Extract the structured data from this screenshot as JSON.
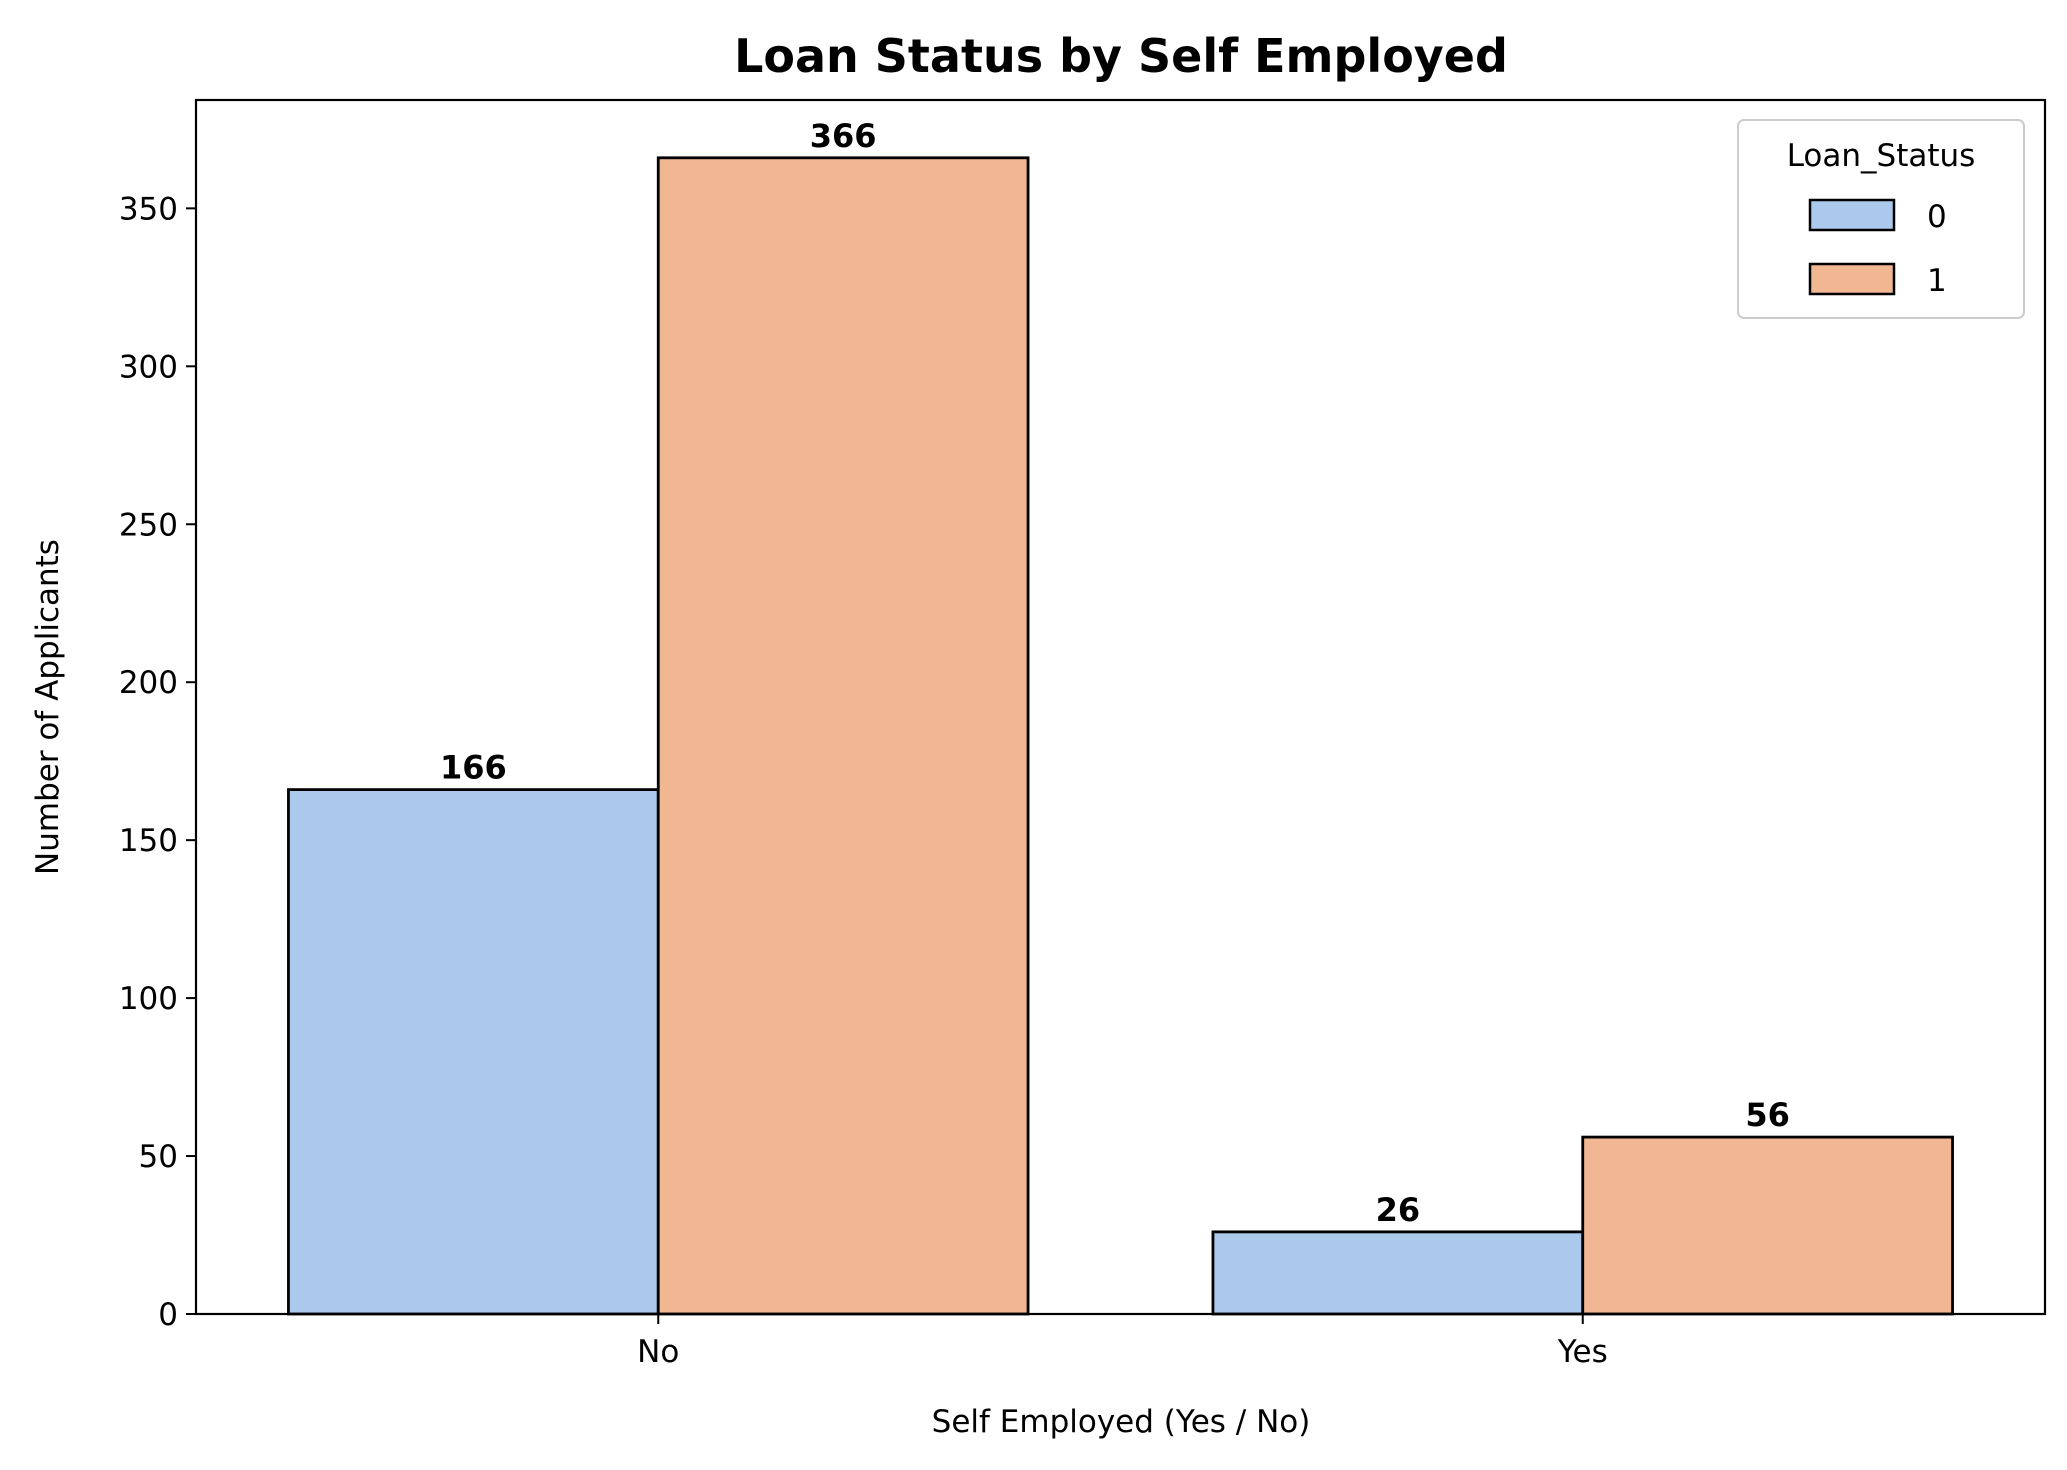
{
  "chart_data": {
    "type": "bar",
    "title": "Loan Status by Self Employed",
    "xlabel": "Self Employed (Yes / No)",
    "ylabel": "Number of Applicants",
    "categories": [
      "No",
      "Yes"
    ],
    "series": [
      {
        "name": "0",
        "values": [
          166,
          26
        ],
        "color": "#abc9ec"
      },
      {
        "name": "1",
        "values": [
          366,
          56
        ],
        "color": "#f0b792"
      }
    ],
    "ylim": [
      0,
      384.3
    ],
    "yticks": [
      0,
      50,
      100,
      150,
      200,
      250,
      300,
      350
    ],
    "grid": false,
    "legend": {
      "title": "Loan_Status",
      "placement": "top-right"
    },
    "bar_edge_color": "#000000",
    "data_labels": true
  }
}
